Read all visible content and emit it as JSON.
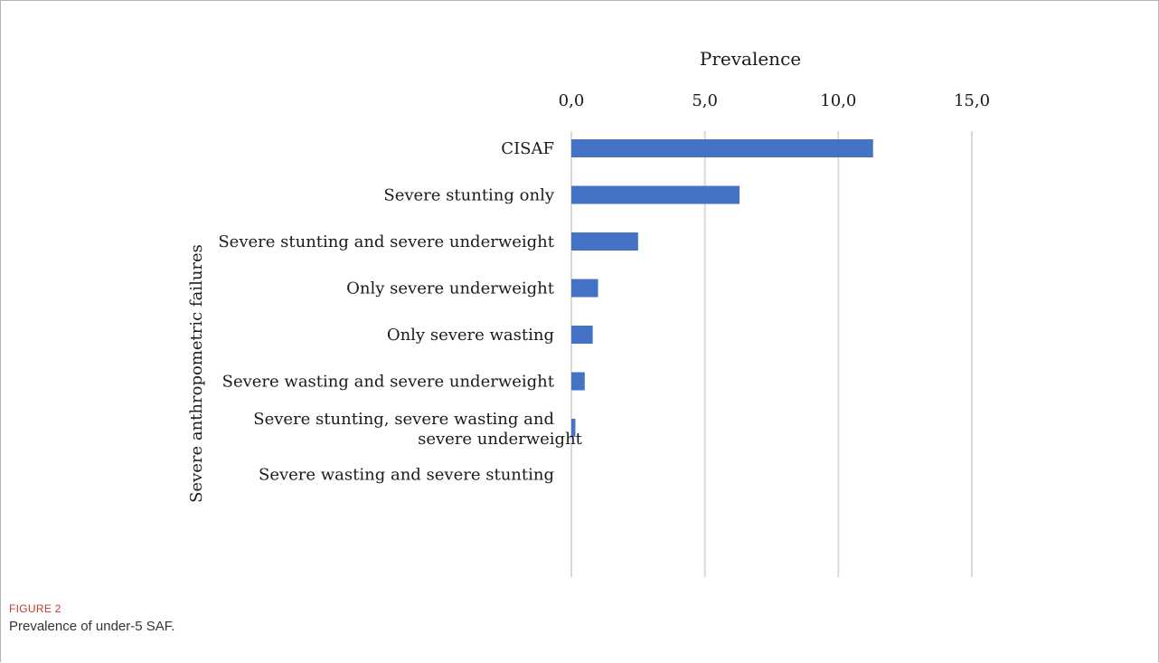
{
  "chart_data": {
    "type": "bar",
    "orientation": "horizontal",
    "categories": [
      "CISAF",
      "Severe stunting only ",
      "Severe stunting and severe underweight",
      "Only severe underweight",
      "Only severe wasting ",
      "Severe wasting and severe underweight",
      "Severe stunting, severe wasting and severe underweight",
      "Severe wasting and severe stunting"
    ],
    "values": [
      11.3,
      6.3,
      2.5,
      1.0,
      0.8,
      0.5,
      0.15,
      0.0
    ],
    "title": "Prevalence",
    "ylabel": "Severe anthropometric failures",
    "xlim": [
      0,
      15
    ],
    "ticks": [
      "0,0",
      "5,0",
      "10,0",
      "15,0"
    ],
    "tick_values": [
      0,
      5,
      10,
      15
    ],
    "x_axis_position": "top",
    "grid": true,
    "bar_color": "#4472c4",
    "grid_color": "#d9d9d9"
  },
  "figure": {
    "label": "FIGURE 2",
    "caption": "Prevalence of under-5 SAF."
  }
}
